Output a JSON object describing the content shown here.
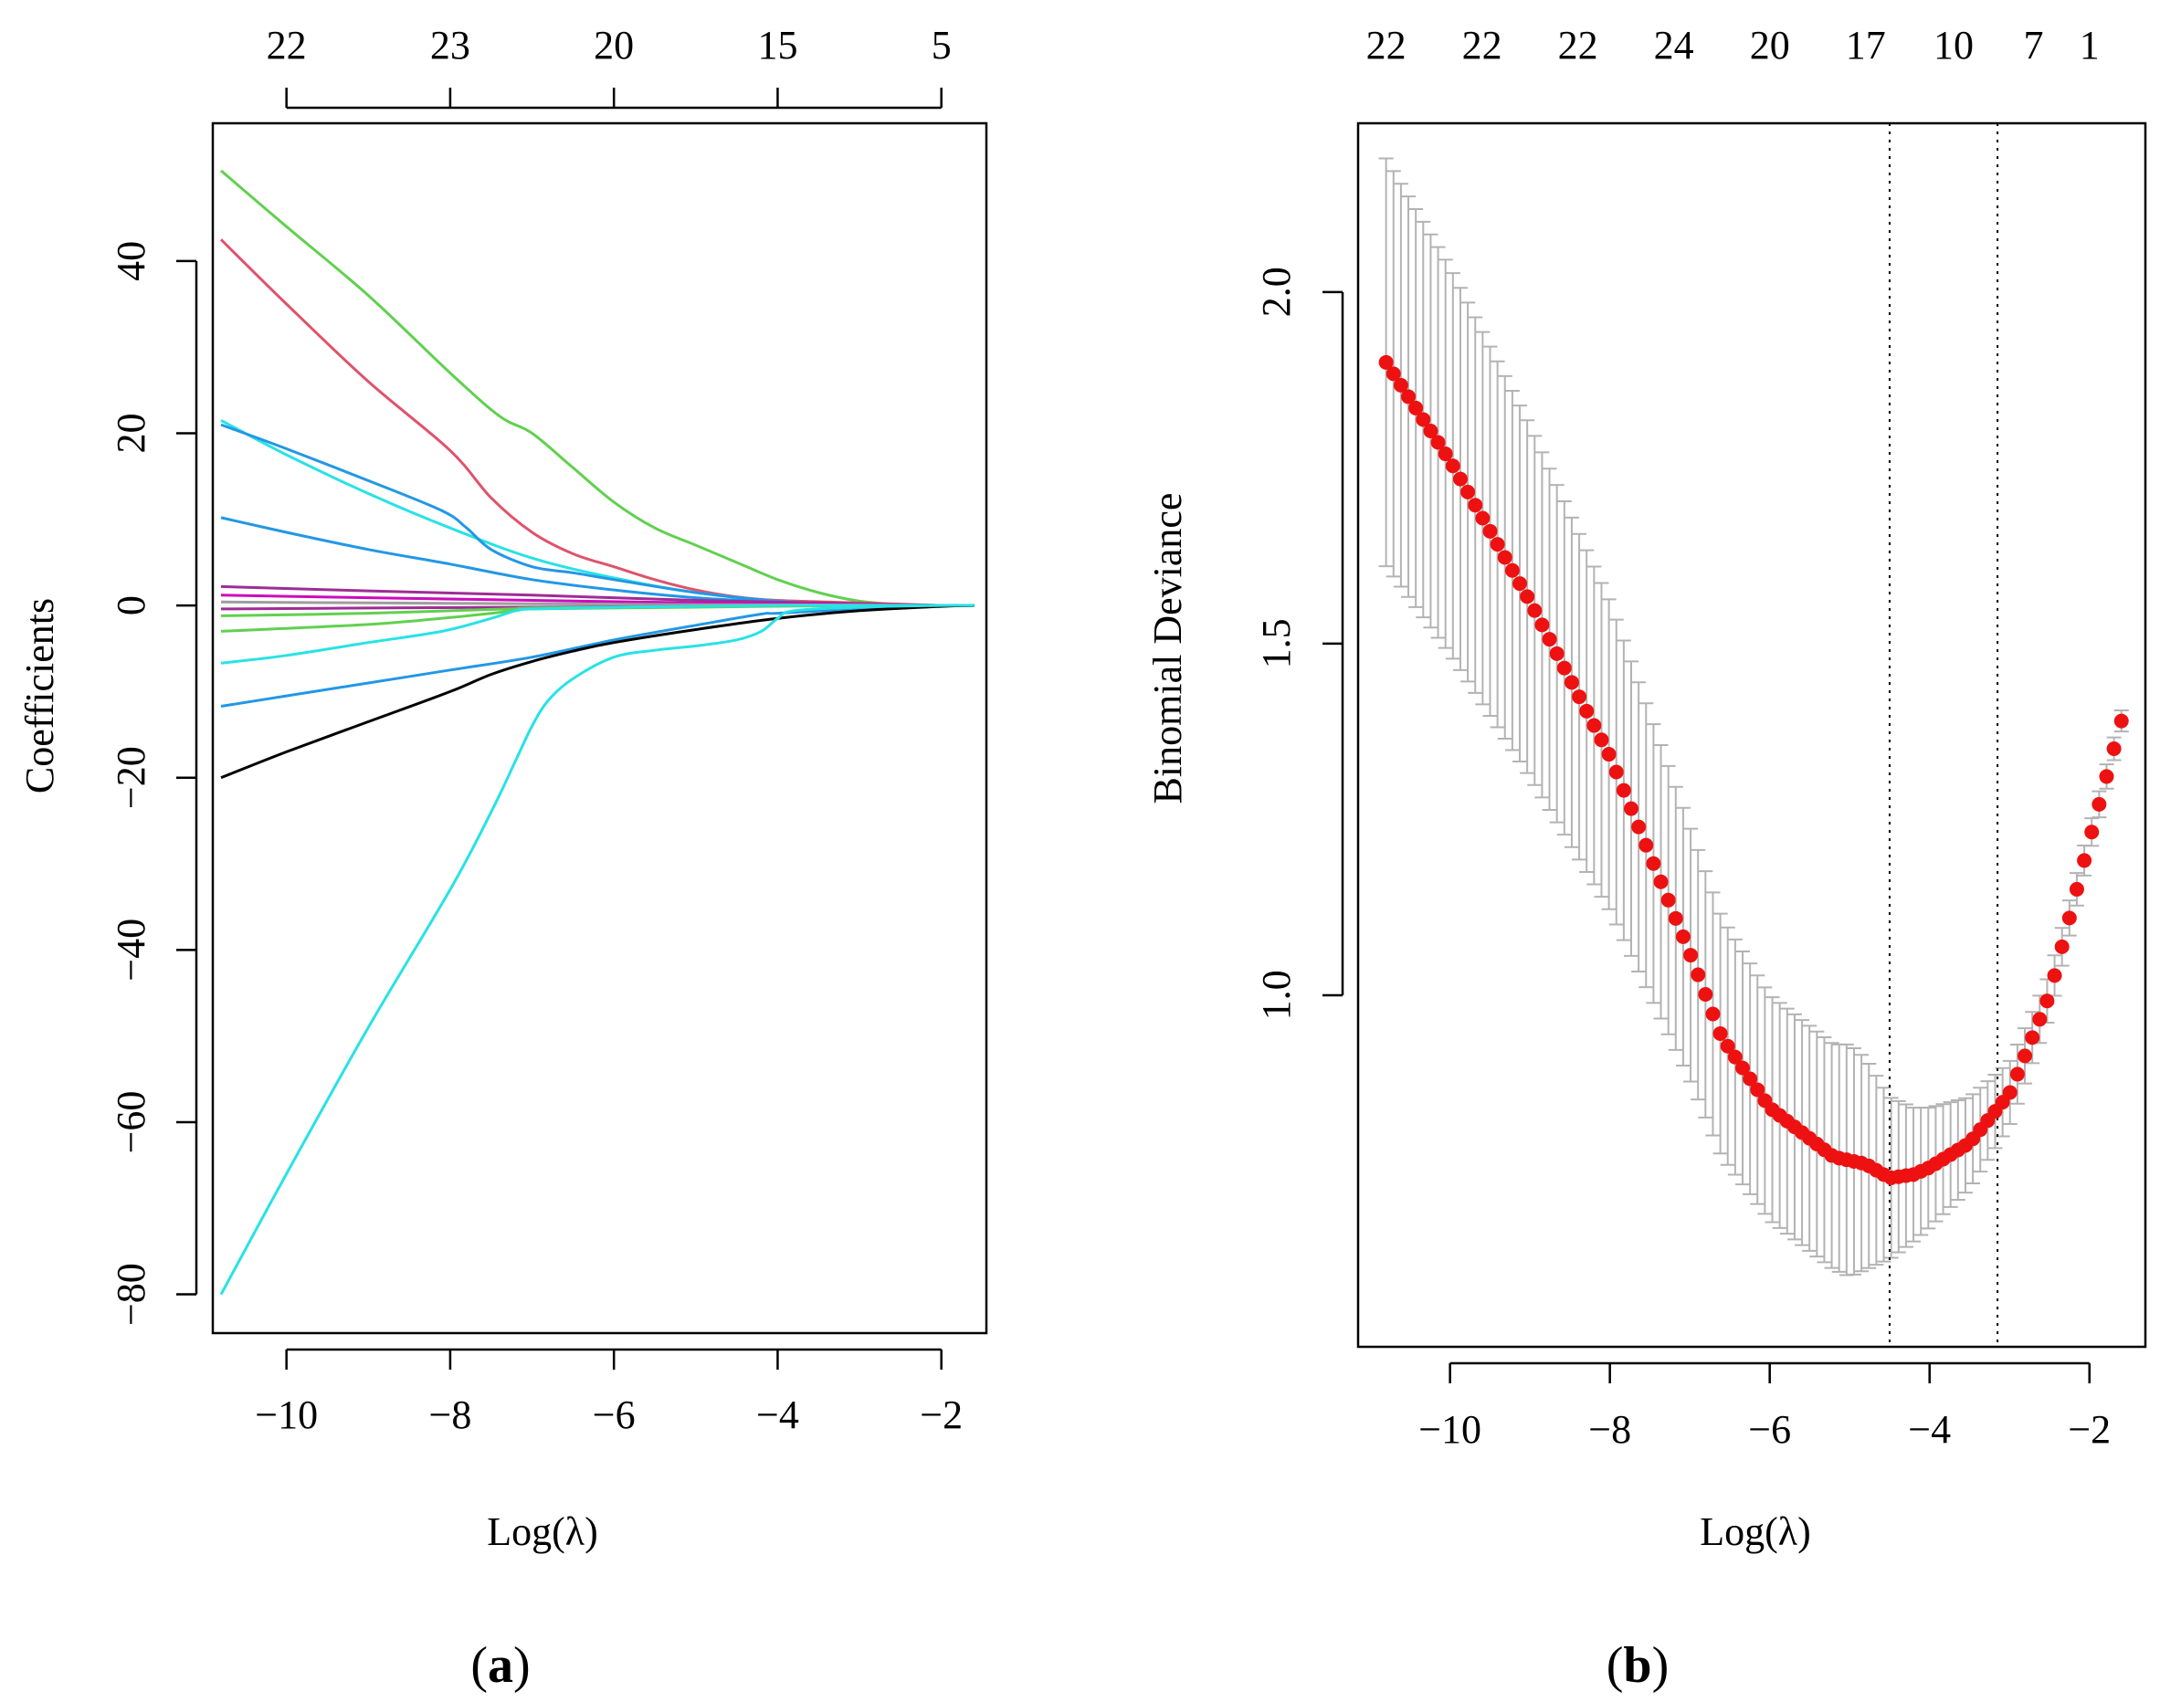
{
  "chart_data": [
    {
      "panel": "a",
      "type": "line",
      "xlabel": "Log(λ)",
      "ylabel": "Coefficients",
      "xlim": [
        -10.9,
        -1.45
      ],
      "ylim": [
        -84.5,
        56
      ],
      "x_ticks": [
        -10,
        -8,
        -6,
        -4,
        -2
      ],
      "x_tick_labels": [
        "−10",
        "−8",
        "−6",
        "−4",
        "−2"
      ],
      "y_ticks": [
        -80,
        -60,
        -40,
        -20,
        0,
        20,
        40
      ],
      "y_tick_labels": [
        "−80",
        "−60",
        "−40",
        "−20",
        "0",
        "20",
        "40"
      ],
      "top_ticks": [
        -10,
        -8,
        -6,
        -4,
        -2
      ],
      "top_tick_labels": [
        "22",
        "23",
        "20",
        "15",
        "5"
      ],
      "series": [
        {
          "name": "green",
          "color": "#61D04F",
          "x": [
            -10.8,
            -10,
            -9,
            -8,
            -7.4,
            -7,
            -6.5,
            -6,
            -5.5,
            -5,
            -4.5,
            -4,
            -3.5,
            -3,
            -2.5,
            -2,
            -1.6
          ],
          "y": [
            50.5,
            44,
            36,
            27,
            22,
            20,
            16,
            12,
            9,
            7,
            5,
            3,
            1.5,
            0.5,
            0.1,
            0,
            0
          ]
        },
        {
          "name": "pink",
          "color": "#DF536B",
          "x": [
            -10.8,
            -10,
            -9,
            -8,
            -7.5,
            -7,
            -6.5,
            -6,
            -5.5,
            -5,
            -4.5,
            -4,
            -3,
            -2,
            -1.6
          ],
          "y": [
            42.5,
            35,
            26,
            18,
            12.5,
            8.5,
            6,
            4.5,
            3,
            1.8,
            1,
            0.6,
            0.3,
            0,
            0
          ]
        },
        {
          "name": "cyan-upper",
          "color": "#28E2E5",
          "x": [
            -10.8,
            -10,
            -9,
            -8,
            -7,
            -6,
            -5,
            -4,
            -3,
            -2,
            -1.6
          ],
          "y": [
            21.5,
            17.5,
            13,
            9,
            5.5,
            3.2,
            1.5,
            0.5,
            0.1,
            0,
            0
          ]
        },
        {
          "name": "blue-upper",
          "color": "#2297E6",
          "x": [
            -10.8,
            -10,
            -9,
            -8.1,
            -7.8,
            -7.5,
            -7,
            -6.5,
            -6,
            -5,
            -4,
            -3,
            -2,
            -1.6
          ],
          "y": [
            21,
            18.2,
            14.5,
            11,
            9,
            6.5,
            4.5,
            3.8,
            3,
            1.5,
            0.5,
            0.1,
            0,
            0
          ]
        },
        {
          "name": "blue-mid",
          "color": "#2297E6",
          "x": [
            -10.8,
            -10,
            -9,
            -8,
            -7,
            -6,
            -5,
            -4,
            -3,
            -2,
            -1.6
          ],
          "y": [
            10.2,
            8.5,
            6.5,
            4.8,
            3,
            1.8,
            0.9,
            0.4,
            0.1,
            0,
            0
          ]
        },
        {
          "name": "purple-1",
          "color": "#9E2D95",
          "x": [
            -10.8,
            -9,
            -7,
            -5,
            -3,
            -2,
            -1.6
          ],
          "y": [
            2.2,
            1.7,
            1.2,
            0.6,
            0.2,
            0,
            0
          ]
        },
        {
          "name": "magenta",
          "color": "#CD0BBC",
          "x": [
            -10.8,
            -9,
            -7,
            -5,
            -3,
            -2,
            -1.6
          ],
          "y": [
            1.2,
            0.9,
            0.6,
            0.3,
            0.1,
            0,
            0
          ]
        },
        {
          "name": "gray",
          "color": "#9E9E9E",
          "x": [
            -10.8,
            -9,
            -7,
            -5,
            -3,
            -2,
            -1.6
          ],
          "y": [
            0.4,
            0.3,
            0.2,
            0.1,
            0.05,
            0,
            0
          ]
        },
        {
          "name": "purple-2",
          "color": "#9E2D95",
          "x": [
            -10.8,
            -9,
            -7,
            -5,
            -3,
            -2,
            -1.6
          ],
          "y": [
            -0.4,
            -0.3,
            -0.2,
            -0.1,
            0,
            0,
            0
          ]
        },
        {
          "name": "green-low-1",
          "color": "#61D04F",
          "x": [
            -10.8,
            -9,
            -7.3,
            -7,
            -5,
            -3,
            -1.6
          ],
          "y": [
            -1.2,
            -0.9,
            -0.4,
            -0.3,
            -0.1,
            0,
            0
          ]
        },
        {
          "name": "green-low-2",
          "color": "#61D04F",
          "x": [
            -10.8,
            -9,
            -8,
            -7.2,
            -7,
            -5,
            -3,
            -1.6
          ],
          "y": [
            -3,
            -2.2,
            -1.4,
            -0.6,
            -0.4,
            -0.2,
            0,
            0
          ]
        },
        {
          "name": "cyan-low",
          "color": "#28E2E5",
          "x": [
            -10.8,
            -10,
            -9,
            -8.1,
            -7.5,
            -7.2,
            -7,
            -6,
            -5,
            -4,
            -3,
            -1.6
          ],
          "y": [
            -6.7,
            -5.8,
            -4.3,
            -3,
            -1.5,
            -0.6,
            -0.4,
            -0.2,
            -0.1,
            0,
            0,
            0
          ]
        },
        {
          "name": "blue-low",
          "color": "#2297E6",
          "x": [
            -10.8,
            -10,
            -9,
            -8,
            -7,
            -6,
            -5,
            -4.2,
            -4,
            -3,
            -2,
            -1.6
          ],
          "y": [
            -11.7,
            -10.5,
            -9,
            -7.5,
            -6,
            -4,
            -2.3,
            -1,
            -0.9,
            -0.4,
            0,
            0
          ]
        },
        {
          "name": "black",
          "color": "#000000",
          "x": [
            -10.8,
            -10,
            -9,
            -8,
            -7.5,
            -7,
            -6.5,
            -6,
            -5,
            -4,
            -3,
            -2,
            -1.6
          ],
          "y": [
            -20,
            -17,
            -13.5,
            -10,
            -8,
            -6.5,
            -5.3,
            -4.3,
            -2.8,
            -1.5,
            -0.6,
            -0.1,
            0
          ]
        },
        {
          "name": "cyan-big",
          "color": "#28E2E5",
          "x": [
            -10.8,
            -10,
            -9,
            -8,
            -7.5,
            -7.2,
            -7,
            -6.8,
            -6.5,
            -6,
            -5.5,
            -5,
            -4.5,
            -4.2,
            -4,
            -3.8,
            -3,
            -2,
            -1.6
          ],
          "y": [
            -80,
            -66,
            -49,
            -33,
            -24,
            -18,
            -14,
            -11,
            -8.5,
            -6,
            -5.2,
            -4.7,
            -4,
            -3,
            -1.5,
            -0.6,
            -0.2,
            0,
            0
          ]
        }
      ]
    },
    {
      "panel": "b",
      "type": "scatter",
      "xlabel": "Log(λ)",
      "ylabel": "Binomial Deviance",
      "xlim": [
        -11.15,
        -1.3
      ],
      "ylim": [
        0.5,
        2.24
      ],
      "x_ticks": [
        -10,
        -8,
        -6,
        -4,
        -2
      ],
      "x_tick_labels": [
        "−10",
        "−8",
        "−6",
        "−4",
        "−2"
      ],
      "y_ticks": [
        1.0,
        1.5,
        2.0
      ],
      "y_tick_labels": [
        "1.0",
        "1.5",
        "2.0"
      ],
      "top_ticks": [
        -10.8,
        -9.6,
        -8.4,
        -7.2,
        -6,
        -4.8,
        -3.7,
        -2.7,
        -2
      ],
      "top_tick_labels": [
        "22",
        "22",
        "22",
        "24",
        "20",
        "17",
        "10",
        "7",
        "1"
      ],
      "vlines": [
        -4.5,
        -3.15
      ],
      "point_color": "#EE1111",
      "errorbar_color": "#B3B3B3",
      "n_points": 100,
      "x_range": [
        -10.8,
        -1.6
      ],
      "anchors": {
        "x": [
          -10.8,
          -10,
          -9,
          -8,
          -7,
          -6.6,
          -6,
          -5.2,
          -5,
          -4.8,
          -4.5,
          -4.2,
          -4,
          -3.5,
          -3,
          -2.5,
          -2,
          -1.6
        ],
        "y": [
          1.9,
          1.76,
          1.56,
          1.34,
          1.06,
          0.94,
          0.84,
          0.77,
          0.765,
          0.76,
          0.74,
          0.745,
          0.755,
          0.79,
          0.86,
          1.0,
          1.22,
          1.39
        ],
        "se": [
          0.29,
          0.275,
          0.25,
          0.22,
          0.18,
          0.17,
          0.16,
          0.16,
          0.165,
          0.15,
          0.115,
          0.095,
          0.085,
          0.065,
          0.045,
          0.03,
          0.02,
          0.015
        ]
      }
    }
  ],
  "labels": {
    "a": "a",
    "b": "b"
  }
}
